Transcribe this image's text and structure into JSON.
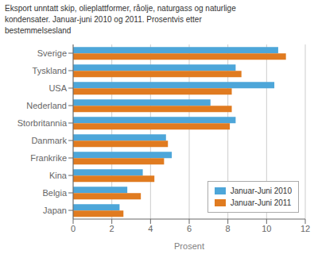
{
  "chart_data": {
    "type": "bar",
    "orientation": "horizontal",
    "title": "Eksport unntatt skip, olieplattformer, råolje, naturgass og naturlige\nkondensater. Januar-juni 2010 og 2011. Prosentvis etter\nbestemmelsesland",
    "xlabel": "Prosent",
    "categories": [
      "Sverige",
      "Tyskland",
      "USA",
      "Nederland",
      "Storbritannia",
      "Danmark",
      "Frankrike",
      "Kina",
      "Belgia",
      "Japan"
    ],
    "series": [
      {
        "name": "Januar-Juni 2010",
        "color": "#4da6d9",
        "values": [
          10.6,
          8.4,
          10.4,
          7.1,
          8.4,
          4.8,
          5.1,
          3.6,
          2.8,
          2.4
        ]
      },
      {
        "name": "Januar-Juni 2011",
        "color": "#e07b20",
        "values": [
          11.0,
          8.7,
          8.2,
          8.2,
          8.1,
          4.9,
          4.7,
          4.2,
          3.5,
          2.6
        ]
      }
    ],
    "xlim": [
      0,
      12
    ],
    "xticks": [
      0,
      2,
      4,
      6,
      8,
      10,
      12
    ],
    "grid": true,
    "legend": "lower right"
  }
}
